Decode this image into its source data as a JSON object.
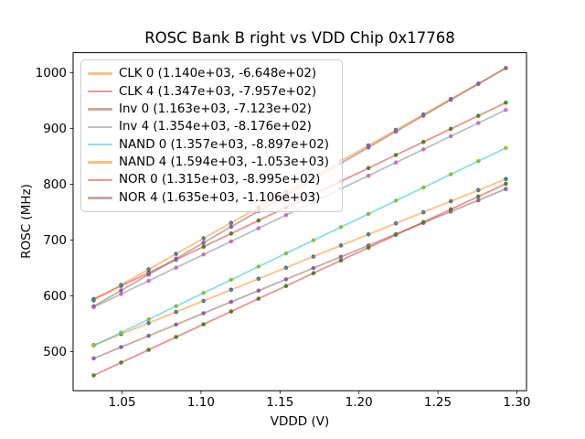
{
  "chart_data": {
    "type": "scatter",
    "title": "ROSC Bank B right vs VDD Chip 0x17768",
    "xlabel": "VDDD (V)",
    "ylabel": "ROSC (MHz)",
    "xlim": [
      1.019,
      1.3061
    ],
    "ylim": [
      430.1,
      1035.6
    ],
    "grid": false,
    "legend_position": "upper left",
    "legend_format": "name (fit slope, fit intercept)",
    "xticks": {
      "values": [
        1.05,
        1.1,
        1.15,
        1.2,
        1.25,
        1.3
      ],
      "labels": [
        "1.05",
        "1.10",
        "1.15",
        "1.20",
        "1.25",
        "1.30"
      ]
    },
    "yticks": {
      "values": [
        500,
        600,
        700,
        800,
        900,
        1000
      ],
      "labels": [
        "500",
        "600",
        "700",
        "800",
        "900",
        "1000"
      ]
    },
    "x": [
      1.032,
      1.0494,
      1.0668,
      1.0842,
      1.1016,
      1.119,
      1.1364,
      1.1538,
      1.1712,
      1.1886,
      1.206,
      1.2234,
      1.2408,
      1.2582,
      1.2756,
      1.293
    ],
    "series": [
      {
        "name": "CLK 0",
        "label": "CLK 0 (1.140e+03, -6.648e+02)",
        "slope": 1140.0,
        "intercept": -664.8,
        "line_color": "#ff7f0e",
        "marker_color": "#1f77b4",
        "y": [
          511.7,
          531.5,
          551.4,
          571.2,
          591.0,
          610.9,
          630.7,
          650.5,
          670.4,
          690.2,
          710.0,
          729.9,
          749.7,
          769.5,
          789.4,
          809.2
        ]
      },
      {
        "name": "CLK 4",
        "label": "CLK 4 (1.347e+03, -7.957e+02)",
        "slope": 1347.0,
        "intercept": -795.7,
        "line_color": "#d62728",
        "marker_color": "#2ca02c",
        "y": [
          594.4,
          617.8,
          641.3,
          664.7,
          688.2,
          711.6,
          735.0,
          758.5,
          781.9,
          805.3,
          828.8,
          852.2,
          875.7,
          899.1,
          922.5,
          946.0
        ]
      },
      {
        "name": "Inv 0",
        "label": "Inv 0 (1.163e+03, -7.123e+02)",
        "slope": 1163.0,
        "intercept": -712.3,
        "line_color": "#8c564b",
        "marker_color": "#9467bd",
        "y": [
          487.9,
          508.2,
          528.4,
          548.6,
          568.9,
          589.1,
          609.3,
          629.6,
          649.8,
          670.0,
          690.3,
          710.5,
          730.8,
          751.0,
          771.2,
          791.5
        ]
      },
      {
        "name": "Inv 4",
        "label": "Inv 4 (1.354e+03, -8.176e+02)",
        "slope": 1354.0,
        "intercept": -817.6,
        "line_color": "#7f7f7f",
        "marker_color": "#e377c2",
        "y": [
          579.7,
          603.3,
          626.8,
          650.4,
          674.0,
          697.5,
          721.1,
          744.6,
          768.2,
          791.8,
          815.3,
          838.9,
          862.4,
          886.0,
          909.6,
          933.1
        ]
      },
      {
        "name": "NAND 0",
        "label": "NAND 0 (1.357e+03, -8.897e+02)",
        "slope": 1357.0,
        "intercept": -889.7,
        "line_color": "#17becf",
        "marker_color": "#bcbd22",
        "y": [
          510.7,
          534.3,
          557.9,
          581.6,
          605.2,
          628.8,
          652.4,
          676.0,
          699.6,
          723.2,
          746.8,
          770.5,
          794.1,
          817.7,
          841.3,
          864.9
        ]
      },
      {
        "name": "NAND 4",
        "label": "NAND 4 (1.594e+03, -1.053e+03)",
        "slope": 1594.0,
        "intercept": -1053.0,
        "line_color": "#ff7f0e",
        "marker_color": "#1f77b4",
        "y": [
          592.0,
          619.7,
          647.5,
          675.2,
          703.0,
          730.7,
          758.4,
          786.2,
          813.9,
          841.6,
          869.4,
          897.1,
          924.8,
          952.6,
          980.3,
          1008.0
        ]
      },
      {
        "name": "NOR 0",
        "label": "NOR 0 (1.315e+03, -8.995e+02)",
        "slope": 1315.0,
        "intercept": -899.5,
        "line_color": "#d62728",
        "marker_color": "#2ca02c",
        "y": [
          457.6,
          480.5,
          503.3,
          526.2,
          549.1,
          572.0,
          594.9,
          617.7,
          640.6,
          663.5,
          686.4,
          709.3,
          732.2,
          755.0,
          777.9,
          800.8
        ]
      },
      {
        "name": "NOR 4",
        "label": "NOR 4 (1.635e+03, -1.106e+03)",
        "slope": 1635.0,
        "intercept": -1106.0,
        "line_color": "#8c564b",
        "marker_color": "#9467bd",
        "y": [
          581.3,
          609.8,
          638.2,
          666.7,
          695.1,
          723.6,
          752.0,
          780.5,
          808.9,
          837.4,
          865.8,
          894.3,
          922.7,
          951.2,
          979.6,
          1008.1
        ]
      }
    ],
    "style": {
      "line_alpha": 0.5,
      "line_width": 1.8,
      "marker_radius": 2.3,
      "axes_color": "#000000",
      "background": "#ffffff",
      "legend_edge_color": "#cbcbcb"
    }
  }
}
